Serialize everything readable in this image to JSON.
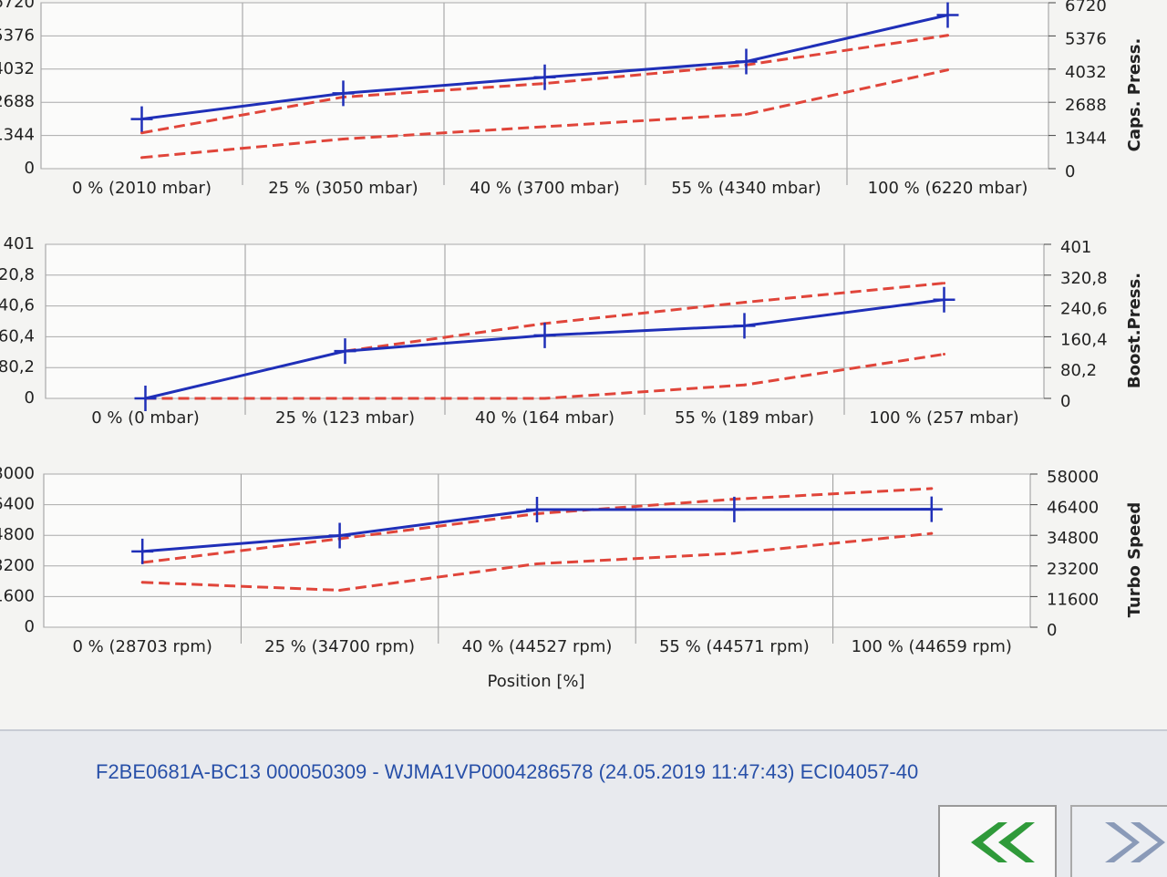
{
  "chart_data": [
    {
      "type": "line",
      "categories": [
        "0 % (2010 mbar)",
        "25 % (3050 mbar)",
        "40 % (3700 mbar)",
        "55 % (4340 mbar)",
        "100 % (6220 mbar)"
      ],
      "y2_label": "Caps. Press.",
      "ylim": [
        0,
        6720
      ],
      "yticks": [
        0,
        1344,
        2688,
        4032,
        5376,
        6720
      ],
      "grid": true,
      "series": [
        {
          "color": "#1f2fb8",
          "values": [
            2010,
            3050,
            3700,
            4340,
            6220
          ],
          "marker": "plus",
          "dashed": false
        },
        {
          "color": "#e0453a",
          "values": [
            1450,
            2900,
            3450,
            4200,
            5400
          ],
          "marker": "none",
          "dashed": true
        },
        {
          "color": "#e0453a",
          "values": [
            450,
            1200,
            1700,
            2200,
            4000
          ],
          "marker": "none",
          "dashed": true
        }
      ]
    },
    {
      "type": "line",
      "categories": [
        "0 % (0 mbar)",
        "25 % (123 mbar)",
        "40 % (164 mbar)",
        "55 % (189 mbar)",
        "100 % (257 mbar)"
      ],
      "y2_label": "Boost.Press.",
      "ylim": [
        0,
        401
      ],
      "yticks": [
        0,
        {
          "value": 80.2,
          "label": "80,2"
        },
        {
          "value": 160.4,
          "label": "160,4"
        },
        {
          "value": 240.6,
          "label": "240,6"
        },
        {
          "value": 320.8,
          "label": "320,8"
        },
        401
      ],
      "grid": true,
      "series": [
        {
          "color": "#1f2fb8",
          "values": [
            0,
            123,
            164,
            189,
            257
          ],
          "marker": "plus",
          "dashed": false
        },
        {
          "color": "#e0453a",
          "values": [
            null,
            123,
            195,
            250,
            300
          ],
          "marker": "none",
          "dashed": true
        },
        {
          "color": "#e0453a",
          "values": [
            0,
            0,
            0,
            35,
            115
          ],
          "marker": "none",
          "dashed": true
        }
      ]
    },
    {
      "type": "line",
      "categories": [
        "0 % (28703 rpm)",
        "25 % (34700 rpm)",
        "40 % (44527 rpm)",
        "55 % (44571 rpm)",
        "100 % (44659 rpm)"
      ],
      "y2_label": "Turbo Speed",
      "x_label": "Position [%]",
      "ylim": [
        0,
        58000
      ],
      "yticks": [
        0,
        11600,
        23200,
        34800,
        46400,
        58000
      ],
      "grid": true,
      "series": [
        {
          "color": "#1f2fb8",
          "values": [
            28703,
            34700,
            44527,
            44571,
            44659
          ],
          "marker": "plus",
          "dashed": false
        },
        {
          "color": "#e0453a",
          "values": [
            24500,
            33500,
            43000,
            48500,
            52500
          ],
          "marker": "none",
          "dashed": true
        },
        {
          "color": "#e0453a",
          "values": [
            17000,
            14000,
            24000,
            28000,
            35500
          ],
          "marker": "none",
          "dashed": true
        }
      ]
    }
  ],
  "footer": {
    "text": "F2BE0681A-BC13 000050309 - WJMA1VP0004286578 (24.05.2019 11:47:43) ECI04057-40"
  }
}
